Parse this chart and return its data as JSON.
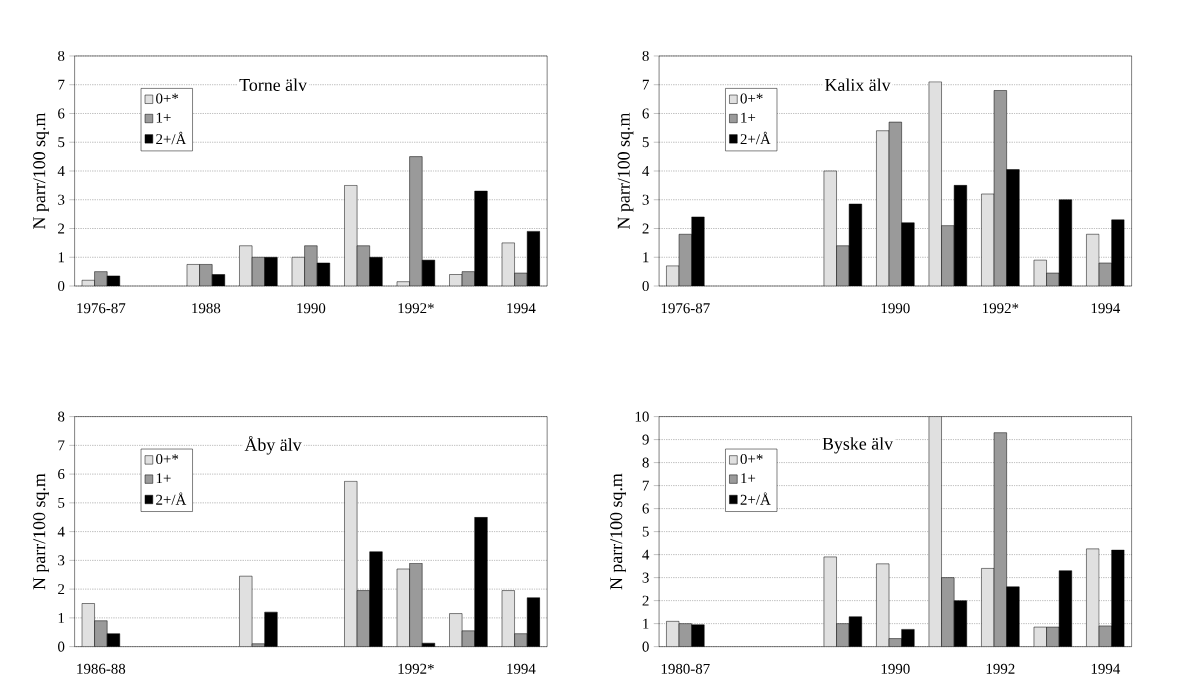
{
  "chart_data": [
    {
      "type": "bar",
      "title": "Torne älv",
      "ylabel": "N parr/100 sq.m",
      "categories": [
        "1976-87",
        null,
        "1988",
        null,
        "1990",
        null,
        "1992*",
        null,
        "1994"
      ],
      "ylim": [
        0,
        8
      ],
      "yticks": [
        0,
        1,
        2,
        3,
        4,
        5,
        6,
        7,
        8
      ],
      "grid": "y",
      "legend": "top left",
      "series": [
        {
          "name": "0+*",
          "color": "#e0e0e0",
          "values": [
            0.2,
            null,
            0.75,
            1.4,
            1.0,
            3.5,
            0.15,
            0.4,
            1.5
          ]
        },
        {
          "name": "1+",
          "color": "#9a9a9a",
          "values": [
            0.5,
            null,
            0.75,
            1.0,
            1.4,
            1.4,
            4.5,
            0.5,
            0.45
          ]
        },
        {
          "name": "2+/Å",
          "color": "#000000",
          "values": [
            0.35,
            null,
            0.4,
            1.0,
            0.8,
            1.0,
            0.9,
            3.3,
            1.9
          ]
        }
      ]
    },
    {
      "type": "bar",
      "title": "Kalix älv",
      "ylabel": "N parr/100 sq.m",
      "categories": [
        "1976-87",
        null,
        null,
        null,
        "1990",
        null,
        "1992*",
        null,
        "1994"
      ],
      "ylim": [
        0,
        8
      ],
      "yticks": [
        0,
        1,
        2,
        3,
        4,
        5,
        6,
        7,
        8
      ],
      "grid": "y",
      "legend": "top left",
      "series": [
        {
          "name": "0+*",
          "color": "#e0e0e0",
          "values": [
            0.7,
            null,
            null,
            4.0,
            5.4,
            7.1,
            3.2,
            0.9,
            1.8
          ]
        },
        {
          "name": "1+",
          "color": "#9a9a9a",
          "values": [
            1.8,
            null,
            null,
            1.4,
            5.7,
            2.1,
            6.8,
            0.45,
            0.8
          ]
        },
        {
          "name": "2+/Å",
          "color": "#000000",
          "values": [
            2.4,
            null,
            null,
            2.85,
            2.2,
            3.5,
            4.05,
            3.0,
            2.3
          ]
        }
      ]
    },
    {
      "type": "bar",
      "title": "Åby älv",
      "ylabel": "N parr/100 sq.m",
      "categories": [
        "1986-88",
        null,
        null,
        null,
        null,
        null,
        "1992*",
        null,
        "1994"
      ],
      "ylim": [
        0,
        8
      ],
      "yticks": [
        0,
        1,
        2,
        3,
        4,
        5,
        6,
        7,
        8
      ],
      "grid": "y",
      "legend": "top left",
      "series": [
        {
          "name": "0+*",
          "color": "#e0e0e0",
          "values": [
            1.5,
            null,
            null,
            2.45,
            null,
            5.75,
            2.7,
            1.15,
            1.95
          ]
        },
        {
          "name": "1+",
          "color": "#9a9a9a",
          "values": [
            0.9,
            null,
            null,
            0.1,
            null,
            1.95,
            2.9,
            0.55,
            0.45
          ]
        },
        {
          "name": "2+/Å",
          "color": "#000000",
          "values": [
            0.45,
            null,
            null,
            1.2,
            null,
            3.3,
            0.12,
            4.5,
            1.7
          ]
        }
      ]
    },
    {
      "type": "bar",
      "title": "Byske älv",
      "ylabel": "N parr/100 sq.m",
      "categories": [
        "1980-87",
        null,
        null,
        null,
        "1990",
        null,
        "1992",
        null,
        "1994"
      ],
      "ylim": [
        0,
        10
      ],
      "yticks": [
        0,
        1,
        2,
        3,
        4,
        5,
        6,
        7,
        8,
        9,
        10
      ],
      "grid": "y",
      "legend": "top left",
      "series": [
        {
          "name": "0+*",
          "color": "#e0e0e0",
          "values": [
            1.1,
            null,
            null,
            3.9,
            3.6,
            10.0,
            3.4,
            0.85,
            4.25
          ]
        },
        {
          "name": "1+",
          "color": "#9a9a9a",
          "values": [
            1.0,
            null,
            null,
            1.0,
            0.35,
            3.0,
            9.3,
            0.85,
            0.9
          ]
        },
        {
          "name": "2+/Å",
          "color": "#000000",
          "values": [
            0.95,
            null,
            null,
            1.3,
            0.75,
            2.0,
            2.6,
            3.3,
            4.2
          ]
        }
      ]
    }
  ]
}
